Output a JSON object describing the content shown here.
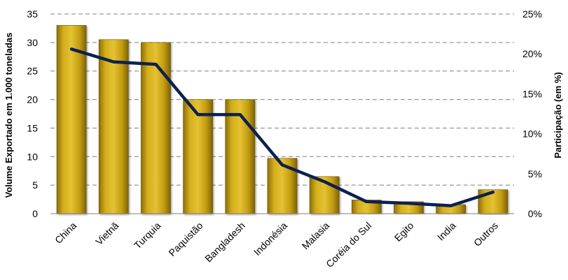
{
  "chart_data": {
    "type": "bar",
    "categories": [
      "China",
      "Vietnã",
      "Turquia",
      "Paquistão",
      "Bangladesh",
      "Indonésia",
      "Malasia",
      "Coréia do Sul",
      "Egito",
      "India",
      "Outros"
    ],
    "series": [
      {
        "type": "bar",
        "axis": "left",
        "values": [
          33,
          30.5,
          30,
          20,
          20,
          9.7,
          6.5,
          2.4,
          2.1,
          1.6,
          4.2
        ],
        "color": "#C9A20E"
      },
      {
        "type": "line",
        "axis": "right",
        "values": [
          20.6,
          19.0,
          18.7,
          12.4,
          12.4,
          6.1,
          4.0,
          1.5,
          1.3,
          1.0,
          2.7
        ],
        "color": "#0D2050"
      }
    ],
    "ylabel": "Volume Exportado em 1.000 toneladas",
    "y2label": "Participação (em %)",
    "ylim": [
      0,
      35
    ],
    "y_ticks": [
      "0",
      "5",
      "10",
      "15",
      "20",
      "25",
      "30",
      "35"
    ],
    "y2lim": [
      0,
      25
    ],
    "y2_ticks": [
      "0%",
      "5%",
      "10%",
      "15%",
      "20%",
      "25%"
    ],
    "grid": "dashed-horizontal",
    "legend": "none"
  }
}
